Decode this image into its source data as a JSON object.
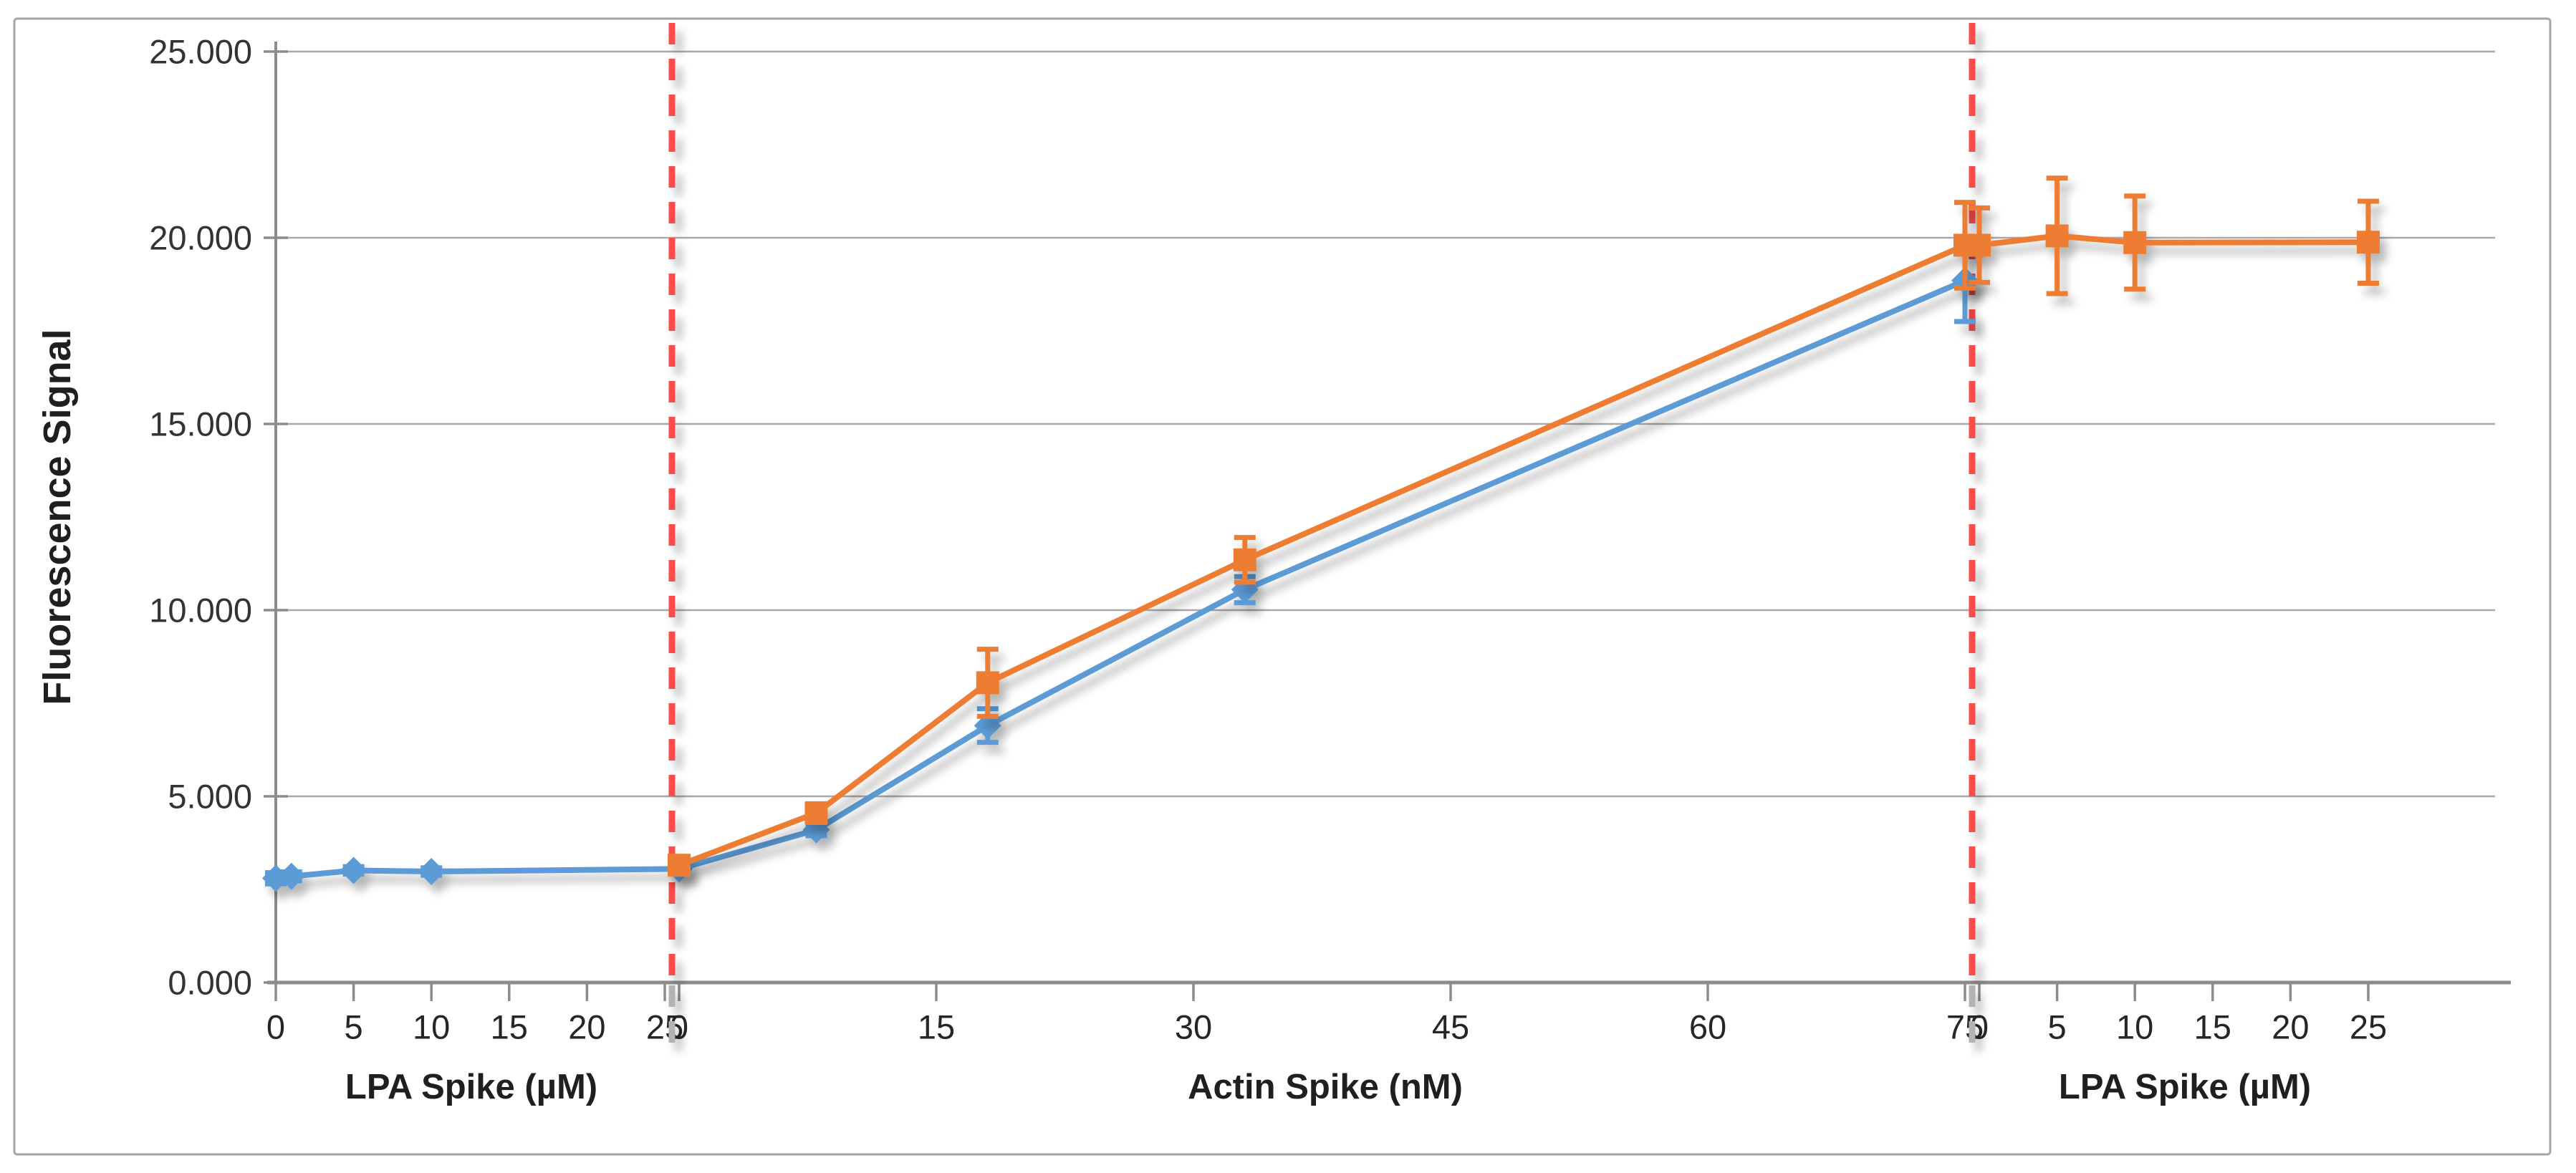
{
  "chart_data": {
    "type": "line",
    "title": "",
    "ylabel": "Fluorescence Signal",
    "legend_position": "none",
    "grid": true,
    "y_axis": {
      "min": 0,
      "max": 25000,
      "major_step": 5000,
      "tick_labels": [
        "0.000",
        "5.000",
        "10.000",
        "15.000",
        "20.000",
        "25.000"
      ]
    },
    "x_segments": [
      {
        "label": "LPA Spike (µM)",
        "min": 0,
        "max": 25,
        "tick_values": [
          0,
          5,
          10,
          15,
          20,
          25
        ],
        "tick_labels": [
          "0",
          "5",
          "10",
          "15",
          "20",
          "25"
        ]
      },
      {
        "label": "Actin Spike (nM)",
        "min": 0,
        "max": 75,
        "tick_values": [
          0,
          15,
          30,
          45,
          60,
          75
        ],
        "tick_labels": [
          "0",
          "15",
          "30",
          "45",
          "60",
          "75"
        ]
      },
      {
        "label": "LPA Spike (µM)",
        "min": 0,
        "max": 25,
        "tick_values": [
          0,
          5,
          10,
          15,
          20,
          25
        ],
        "tick_labels": [
          "0",
          "5",
          "10",
          "15",
          "20",
          "25"
        ]
      }
    ],
    "separator_lines": {
      "count": 2,
      "between_segments": [
        [
          0,
          1
        ],
        [
          1,
          2
        ]
      ],
      "style": "dashed",
      "color": "#FB4B4B"
    },
    "series": [
      {
        "name": "blue-series",
        "color": "#5B9BD5",
        "marker": "diamond",
        "points": [
          {
            "segment": 0,
            "x": 0,
            "y": 2800,
            "err": 150
          },
          {
            "segment": 0,
            "x": 1,
            "y": 2850,
            "err": 120
          },
          {
            "segment": 0,
            "x": 5,
            "y": 3010,
            "err": 100
          },
          {
            "segment": 0,
            "x": 10,
            "y": 2980,
            "err": 100
          },
          {
            "segment": 1,
            "x": 0,
            "y": 3050,
            "err": 120
          },
          {
            "segment": 1,
            "x": 8,
            "y": 4100,
            "err": 160
          },
          {
            "segment": 1,
            "x": 18,
            "y": 6900,
            "err": 450
          },
          {
            "segment": 1,
            "x": 33,
            "y": 10550,
            "err": 350
          },
          {
            "segment": 1,
            "x": 75,
            "y": 18850,
            "err": 1100
          }
        ]
      },
      {
        "name": "orange-series",
        "color": "#ED7D31",
        "marker": "square",
        "points": [
          {
            "segment": 1,
            "x": 0,
            "y": 3150,
            "err": 200
          },
          {
            "segment": 1,
            "x": 8,
            "y": 4550,
            "err": 250
          },
          {
            "segment": 1,
            "x": 18,
            "y": 8050,
            "err": 900
          },
          {
            "segment": 1,
            "x": 33,
            "y": 11350,
            "err": 600
          },
          {
            "segment": 1,
            "x": 75,
            "y": 19800,
            "err": 1150
          },
          {
            "segment": 2,
            "x": 0,
            "y": 19800,
            "err": 1000
          },
          {
            "segment": 2,
            "x": 5,
            "y": 20050,
            "err": 1550
          },
          {
            "segment": 2,
            "x": 10,
            "y": 19870,
            "err": 1250
          },
          {
            "segment": 2,
            "x": 25,
            "y": 19880,
            "err": 1100
          }
        ]
      }
    ]
  },
  "colors": {
    "blue_series": "#5B9BD5",
    "orange_series": "#ED7D31",
    "separator_red": "#FB4B4B",
    "separator_below_axis": "#B3B3B3",
    "gridline": "#A9A9A9",
    "axis_line": "#8C8C8C",
    "tick_text": "#333333",
    "title_text": "#1F1F1F",
    "frame_border": "#A6A6A6",
    "background": "#FFFFFF"
  }
}
